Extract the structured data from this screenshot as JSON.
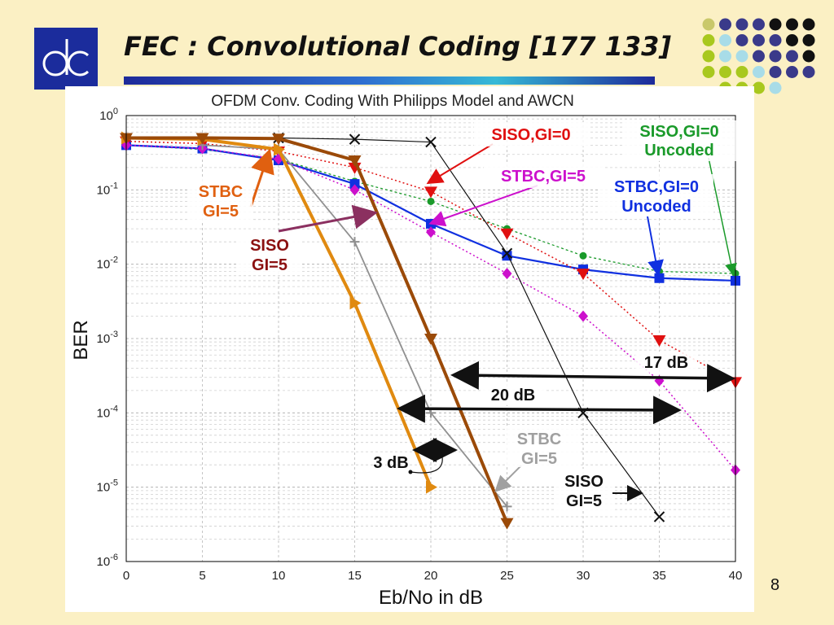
{
  "slide": {
    "title": "FEC : Convolutional Coding [177 133]",
    "page_number": "8",
    "colors": {
      "background": "#fbf0c4",
      "title_bar": "#2f6fd0",
      "logo": "#1b2c9c"
    }
  },
  "chart_data": {
    "type": "line",
    "title": "OFDM Conv. Coding With Philipps Model and AWCN",
    "xlabel": "Eb/No in dB",
    "ylabel": "BER",
    "xlim": [
      0,
      40
    ],
    "ylim": [
      1e-06,
      1
    ],
    "yscale": "log",
    "grid": true,
    "x_ticks": [
      "0",
      "5",
      "10",
      "15",
      "20",
      "25",
      "30",
      "35",
      "40"
    ],
    "y_ticks": [
      {
        "base": "10",
        "exp": "0"
      },
      {
        "base": "10",
        "exp": "-1"
      },
      {
        "base": "10",
        "exp": "-2"
      },
      {
        "base": "10",
        "exp": "-3"
      },
      {
        "base": "10",
        "exp": "-4"
      },
      {
        "base": "10",
        "exp": "-5"
      },
      {
        "base": "10",
        "exp": "-6"
      }
    ],
    "series": [
      {
        "key": "siso_gi0_uncoded",
        "color": "#1a9a2a",
        "marker": "circle",
        "dash": "3,3",
        "width": 1.3,
        "x": [
          0,
          5,
          10,
          15,
          20,
          25,
          30,
          35,
          40
        ],
        "y": [
          0.4,
          0.35,
          0.26,
          0.13,
          0.07,
          0.03,
          0.013,
          0.008,
          0.0075
        ]
      },
      {
        "key": "stbc_gi0_uncoded",
        "color": "#1030e0",
        "marker": "square",
        "dash": "",
        "width": 2.2,
        "x": [
          0,
          5,
          10,
          15,
          20,
          25,
          30,
          35,
          40
        ],
        "y": [
          0.4,
          0.36,
          0.25,
          0.12,
          0.035,
          0.013,
          0.0085,
          0.0065,
          0.006
        ]
      },
      {
        "key": "siso_gi0",
        "color": "#e01010",
        "marker": "triangle-down",
        "dash": "2,3",
        "width": 1.5,
        "x": [
          0,
          5,
          10,
          15,
          20,
          25,
          30,
          35,
          40
        ],
        "y": [
          0.45,
          0.42,
          0.33,
          0.2,
          0.095,
          0.026,
          0.0075,
          0.00095,
          0.00026
        ]
      },
      {
        "key": "stbc_gi5",
        "color": "#cc10cc",
        "marker": "diamond",
        "dash": "2,3",
        "width": 1.5,
        "x": [
          0,
          5,
          10,
          15,
          20,
          25,
          30,
          35,
          40
        ],
        "y": [
          0.4,
          0.36,
          0.26,
          0.1,
          0.027,
          0.0075,
          0.002,
          0.00027,
          1.7e-05
        ]
      },
      {
        "key": "siso_gi5_uncoded_black",
        "color": "#111111",
        "marker": "x",
        "dash": "",
        "width": 1.2,
        "x": [
          10,
          15,
          20,
          25,
          30,
          35
        ],
        "y": [
          0.5,
          0.48,
          0.44,
          0.014,
          0.0001,
          4e-06
        ]
      },
      {
        "key": "stbc_gi5_gray",
        "color": "#909090",
        "marker": "plus",
        "dash": "",
        "width": 1.8,
        "x": [
          5,
          10,
          15,
          20,
          25
        ],
        "y": [
          0.4,
          0.35,
          0.02,
          0.0001,
          5.5e-06
        ]
      },
      {
        "key": "stbc_gi5_orange",
        "color": "#e08a10",
        "marker": "triangle-right",
        "dash": "",
        "width": 4,
        "x": [
          0,
          5,
          10,
          15,
          20
        ],
        "y": [
          0.5,
          0.48,
          0.35,
          0.003,
          1e-05
        ]
      },
      {
        "key": "siso_gi5_brown",
        "color": "#9b4a08",
        "marker": "triangle-down",
        "dash": "",
        "width": 4,
        "x": [
          0,
          5,
          10,
          15,
          20,
          25
        ],
        "y": [
          0.5,
          0.5,
          0.49,
          0.25,
          0.001,
          3.3e-06
        ]
      }
    ],
    "annotations": {
      "siso_gi0": {
        "text": "SISO,GI=0",
        "color": "#e01010"
      },
      "stbc_gi5_magenta": {
        "text": "STBC,GI=5",
        "color": "#cc10cc"
      },
      "siso_gi0_uncoded": {
        "line1": "SISO,GI=0",
        "line2": "Uncoded",
        "color": "#1a9a2a"
      },
      "stbc_gi0_uncoded": {
        "line1": "STBC,GI=0",
        "line2": "Uncoded",
        "color": "#1030e0"
      },
      "stbc_gi5_orange": {
        "line1": "STBC",
        "line2": "GI=5",
        "color": "#e06010"
      },
      "siso_gi5_brown": {
        "line1": "SISO",
        "line2": "GI=5",
        "color": "#8b1010"
      },
      "stbc_gi5_gray": {
        "line1": "STBC",
        "line2": "GI=5",
        "color": "#a0a0a0"
      },
      "siso_gi5_black": {
        "line1": "SISO",
        "line2": "GI=5",
        "color": "#111111"
      },
      "gap_17": {
        "text": "17 dB"
      },
      "gap_20": {
        "text": "20 dB"
      },
      "gap_3": {
        "text": "3 dB"
      }
    }
  }
}
